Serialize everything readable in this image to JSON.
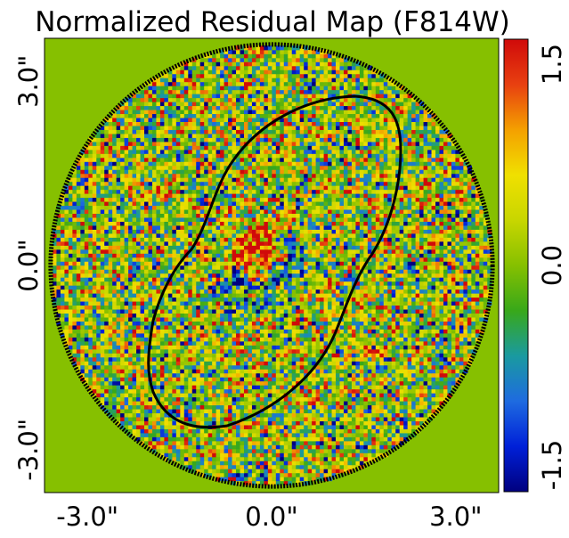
{
  "chart_data": {
    "type": "heatmap",
    "title": "Normalized Residual Map (F814W)",
    "xlabel": "",
    "ylabel": "",
    "x_ticks": [
      "-3.0\"",
      "0.0\"",
      "3.0\""
    ],
    "y_ticks": [
      "-3.0\"",
      "0.0\"",
      "3.0\""
    ],
    "x_tick_values": [
      -3.0,
      0.0,
      3.0
    ],
    "y_tick_values": [
      -3.0,
      0.0,
      3.0
    ],
    "xlim": [
      -3.7,
      3.7
    ],
    "ylim": [
      -3.7,
      3.7
    ],
    "aperture_radius": 3.6,
    "colorbar": {
      "range": [
        -1.5,
        1.5
      ],
      "ticks": [
        "-1.5",
        "0.0",
        "1.5"
      ],
      "tick_values": [
        -1.5,
        0.0,
        1.5
      ],
      "colors": [
        "#00007f",
        "#0020d8",
        "#1e6be0",
        "#1a9aa0",
        "#38a81a",
        "#86c000",
        "#c8d600",
        "#f0e000",
        "#f4a000",
        "#e84010",
        "#d00a0a"
      ]
    },
    "background_value": 0.15,
    "background_color": "#86c000",
    "contour_color": "#000000",
    "grid": false
  }
}
